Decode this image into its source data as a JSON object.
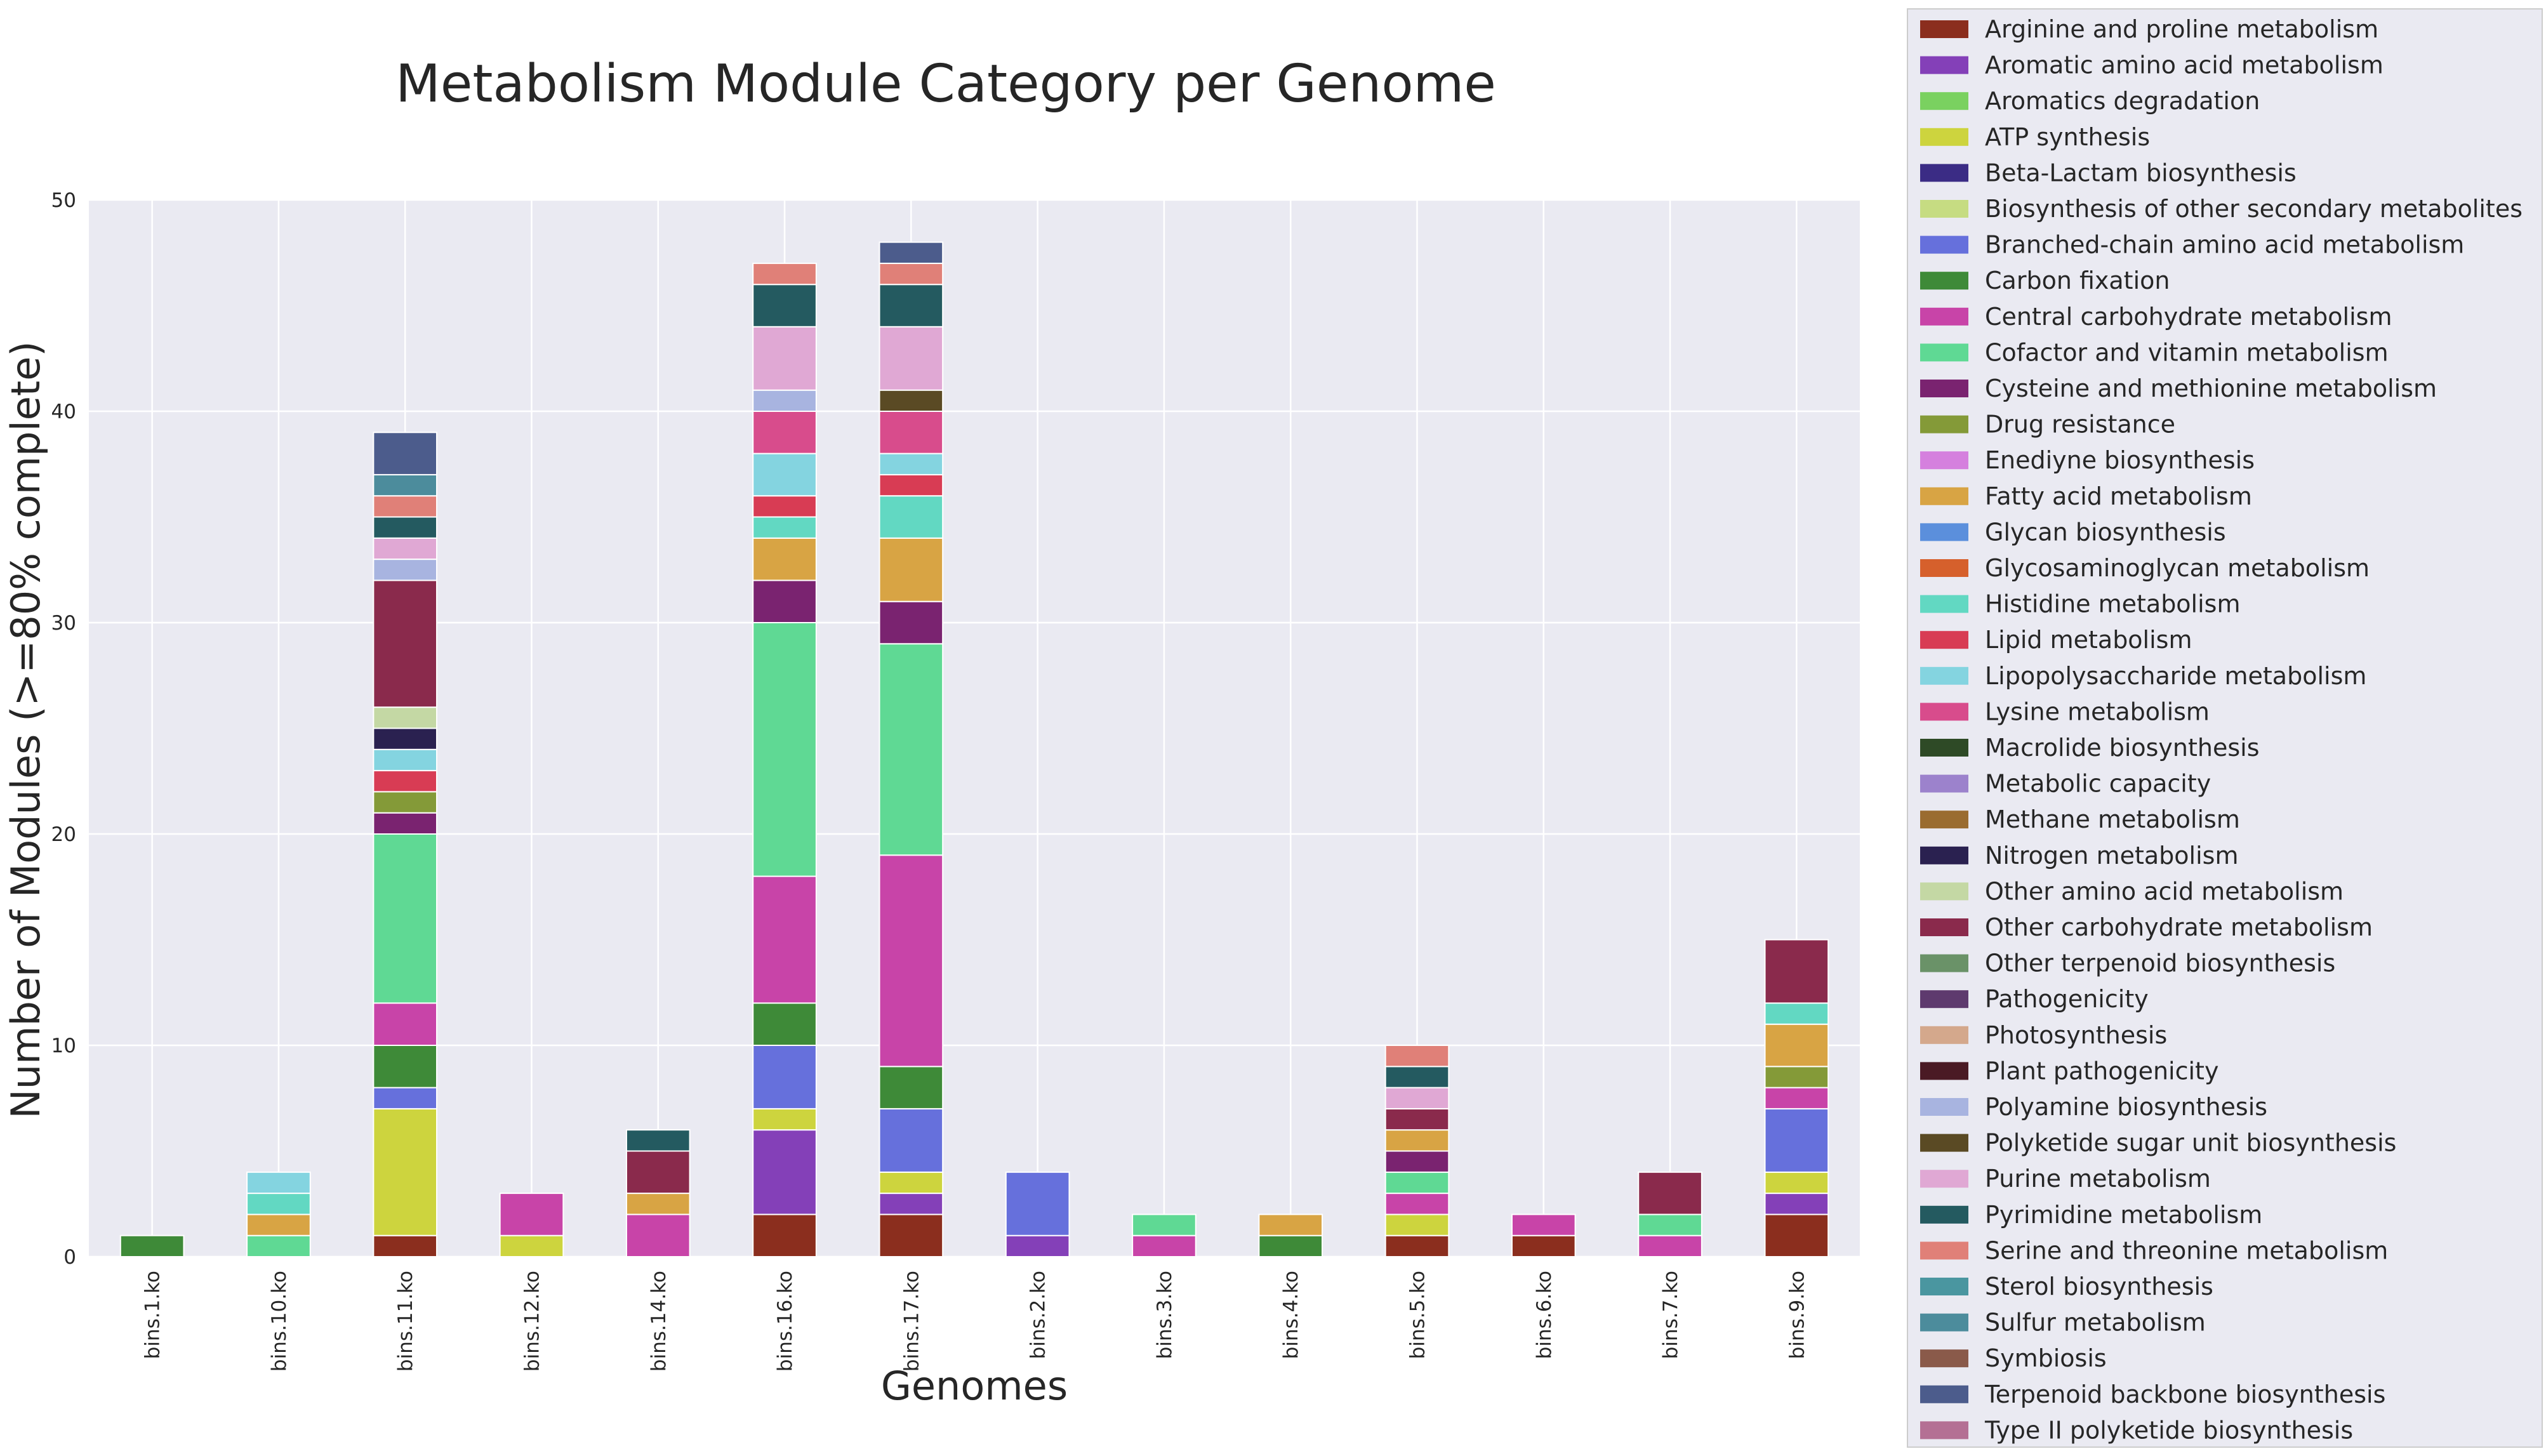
{
  "chart_data": {
    "type": "bar",
    "stacked": true,
    "title": "Metabolism Module Category per Genome",
    "xlabel": "Genomes",
    "ylabel": "Number of Modules (>=80% complete)",
    "ylim": [
      0,
      50
    ],
    "yticks": [
      0,
      10,
      20,
      30,
      40,
      50
    ],
    "grid": true,
    "legend_position": "right-outside",
    "categories": [
      "bins.1.ko",
      "bins.10.ko",
      "bins.11.ko",
      "bins.12.ko",
      "bins.14.ko",
      "bins.16.ko",
      "bins.17.ko",
      "bins.2.ko",
      "bins.3.ko",
      "bins.4.ko",
      "bins.5.ko",
      "bins.6.ko",
      "bins.7.ko",
      "bins.9.ko"
    ],
    "series": [
      {
        "name": "Arginine and proline metabolism",
        "color": "#8b2e1e",
        "values": [
          0,
          0,
          1,
          0,
          0,
          2,
          2,
          0,
          0,
          0,
          1,
          1,
          0,
          2
        ]
      },
      {
        "name": "Aromatic amino acid metabolism",
        "color": "#8440b8",
        "values": [
          0,
          0,
          0,
          0,
          0,
          4,
          1,
          1,
          0,
          0,
          0,
          0,
          0,
          1
        ]
      },
      {
        "name": "Aromatics degradation",
        "color": "#7ad160",
        "values": [
          0,
          0,
          0,
          0,
          0,
          0,
          0,
          0,
          0,
          0,
          0,
          0,
          0,
          0
        ]
      },
      {
        "name": "ATP synthesis",
        "color": "#cdd43e",
        "values": [
          0,
          0,
          6,
          1,
          0,
          1,
          1,
          0,
          0,
          0,
          1,
          0,
          0,
          1
        ]
      },
      {
        "name": "Beta-Lactam biosynthesis",
        "color": "#3b2c85",
        "values": [
          0,
          0,
          0,
          0,
          0,
          0,
          0,
          0,
          0,
          0,
          0,
          0,
          0,
          0
        ]
      },
      {
        "name": "Biosynthesis of other secondary metabolites",
        "color": "#c6dc82",
        "values": [
          0,
          0,
          0,
          0,
          0,
          0,
          0,
          0,
          0,
          0,
          0,
          0,
          0,
          0
        ]
      },
      {
        "name": "Branched-chain amino acid metabolism",
        "color": "#6670dc",
        "values": [
          0,
          0,
          1,
          0,
          0,
          3,
          3,
          3,
          0,
          0,
          0,
          0,
          0,
          3
        ]
      },
      {
        "name": "Carbon fixation",
        "color": "#3e8a38",
        "values": [
          1,
          0,
          2,
          0,
          0,
          2,
          2,
          0,
          0,
          1,
          0,
          0,
          0,
          0
        ]
      },
      {
        "name": "Central carbohydrate metabolism",
        "color": "#c844a8",
        "values": [
          0,
          0,
          2,
          2,
          2,
          6,
          10,
          0,
          1,
          0,
          1,
          1,
          1,
          1
        ]
      },
      {
        "name": "Cofactor and vitamin metabolism",
        "color": "#5fd994",
        "values": [
          0,
          1,
          8,
          0,
          0,
          12,
          10,
          0,
          1,
          0,
          1,
          0,
          1,
          0
        ]
      },
      {
        "name": "Cysteine and methionine metabolism",
        "color": "#7a2370",
        "values": [
          0,
          0,
          1,
          0,
          0,
          2,
          2,
          0,
          0,
          0,
          1,
          0,
          0,
          0
        ]
      },
      {
        "name": "Drug resistance",
        "color": "#849a38",
        "values": [
          0,
          0,
          1,
          0,
          0,
          0,
          0,
          0,
          0,
          0,
          0,
          0,
          0,
          1
        ]
      },
      {
        "name": "Enediyne biosynthesis",
        "color": "#d580de",
        "values": [
          0,
          0,
          0,
          0,
          0,
          0,
          0,
          0,
          0,
          0,
          0,
          0,
          0,
          0
        ]
      },
      {
        "name": "Fatty acid metabolism",
        "color": "#d8a444",
        "values": [
          0,
          1,
          0,
          0,
          1,
          2,
          3,
          0,
          0,
          1,
          1,
          0,
          0,
          2
        ]
      },
      {
        "name": "Glycan biosynthesis",
        "color": "#5b8fdc",
        "values": [
          0,
          0,
          0,
          0,
          0,
          0,
          0,
          0,
          0,
          0,
          0,
          0,
          0,
          0
        ]
      },
      {
        "name": "Glycosaminoglycan metabolism",
        "color": "#d6602c",
        "values": [
          0,
          0,
          0,
          0,
          0,
          0,
          0,
          0,
          0,
          0,
          0,
          0,
          0,
          0
        ]
      },
      {
        "name": "Histidine metabolism",
        "color": "#62d8c2",
        "values": [
          0,
          1,
          0,
          0,
          0,
          1,
          2,
          0,
          0,
          0,
          0,
          0,
          0,
          1
        ]
      },
      {
        "name": "Lipid metabolism",
        "color": "#d83c54",
        "values": [
          0,
          0,
          1,
          0,
          0,
          1,
          1,
          0,
          0,
          0,
          0,
          0,
          0,
          0
        ]
      },
      {
        "name": "Lipopolysaccharide metabolism",
        "color": "#84d4e0",
        "values": [
          0,
          1,
          1,
          0,
          0,
          2,
          1,
          0,
          0,
          0,
          0,
          0,
          0,
          0
        ]
      },
      {
        "name": "Lysine metabolism",
        "color": "#d84c8c",
        "values": [
          0,
          0,
          0,
          0,
          0,
          2,
          2,
          0,
          0,
          0,
          0,
          0,
          0,
          0
        ]
      },
      {
        "name": "Macrolide biosynthesis",
        "color": "#2e4a26",
        "values": [
          0,
          0,
          0,
          0,
          0,
          0,
          0,
          0,
          0,
          0,
          0,
          0,
          0,
          0
        ]
      },
      {
        "name": "Metabolic capacity",
        "color": "#9c82cc",
        "values": [
          0,
          0,
          0,
          0,
          0,
          0,
          0,
          0,
          0,
          0,
          0,
          0,
          0,
          0
        ]
      },
      {
        "name": "Methane metabolism",
        "color": "#9a6c30",
        "values": [
          0,
          0,
          0,
          0,
          0,
          0,
          0,
          0,
          0,
          0,
          0,
          0,
          0,
          0
        ]
      },
      {
        "name": "Nitrogen metabolism",
        "color": "#2a2150",
        "values": [
          0,
          0,
          1,
          0,
          0,
          0,
          0,
          0,
          0,
          0,
          0,
          0,
          0,
          0
        ]
      },
      {
        "name": "Other amino acid metabolism",
        "color": "#c4d8a4",
        "values": [
          0,
          0,
          1,
          0,
          0,
          0,
          0,
          0,
          0,
          0,
          0,
          0,
          0,
          0
        ]
      },
      {
        "name": "Other carbohydrate metabolism",
        "color": "#8a2a4c",
        "values": [
          0,
          0,
          6,
          0,
          2,
          0,
          0,
          0,
          0,
          0,
          1,
          0,
          2,
          3
        ]
      },
      {
        "name": "Other terpenoid biosynthesis",
        "color": "#6a9268",
        "values": [
          0,
          0,
          0,
          0,
          0,
          0,
          0,
          0,
          0,
          0,
          0,
          0,
          0,
          0
        ]
      },
      {
        "name": "Pathogenicity",
        "color": "#5e3a6e",
        "values": [
          0,
          0,
          0,
          0,
          0,
          0,
          0,
          0,
          0,
          0,
          0,
          0,
          0,
          0
        ]
      },
      {
        "name": "Photosynthesis",
        "color": "#d4a88c",
        "values": [
          0,
          0,
          0,
          0,
          0,
          0,
          0,
          0,
          0,
          0,
          0,
          0,
          0,
          0
        ]
      },
      {
        "name": "Plant pathogenicity",
        "color": "#4a1a24",
        "values": [
          0,
          0,
          0,
          0,
          0,
          0,
          0,
          0,
          0,
          0,
          0,
          0,
          0,
          0
        ]
      },
      {
        "name": "Polyamine biosynthesis",
        "color": "#a8b4e0",
        "values": [
          0,
          0,
          1,
          0,
          0,
          1,
          0,
          0,
          0,
          0,
          0,
          0,
          0,
          0
        ]
      },
      {
        "name": "Polyketide sugar unit biosynthesis",
        "color": "#5a4a24",
        "values": [
          0,
          0,
          0,
          0,
          0,
          0,
          1,
          0,
          0,
          0,
          0,
          0,
          0,
          0
        ]
      },
      {
        "name": "Purine metabolism",
        "color": "#e0a8d4",
        "values": [
          0,
          0,
          1,
          0,
          0,
          3,
          3,
          0,
          0,
          0,
          1,
          0,
          0,
          0
        ]
      },
      {
        "name": "Pyrimidine metabolism",
        "color": "#245a60",
        "values": [
          0,
          0,
          1,
          0,
          1,
          2,
          2,
          0,
          0,
          0,
          1,
          0,
          0,
          0
        ]
      },
      {
        "name": "Serine and threonine metabolism",
        "color": "#e08078",
        "values": [
          0,
          0,
          1,
          0,
          0,
          1,
          1,
          0,
          0,
          0,
          1,
          0,
          0,
          0
        ]
      },
      {
        "name": "Sterol biosynthesis",
        "color": "#4a96a0",
        "values": [
          0,
          0,
          0,
          0,
          0,
          0,
          0,
          0,
          0,
          0,
          0,
          0,
          0,
          0
        ]
      },
      {
        "name": "Sulfur metabolism",
        "color": "#4c8c9c",
        "values": [
          0,
          0,
          1,
          0,
          0,
          0,
          0,
          0,
          0,
          0,
          0,
          0,
          0,
          0
        ]
      },
      {
        "name": "Symbiosis",
        "color": "#8a5a4a",
        "values": [
          0,
          0,
          0,
          0,
          0,
          0,
          0,
          0,
          0,
          0,
          0,
          0,
          0,
          0
        ]
      },
      {
        "name": "Terpenoid backbone biosynthesis",
        "color": "#4c5c8c",
        "values": [
          0,
          0,
          2,
          0,
          0,
          0,
          1,
          0,
          0,
          0,
          0,
          0,
          0,
          0
        ]
      },
      {
        "name": "Type II polyketide biosynthesis",
        "color": "#b47094",
        "values": [
          0,
          0,
          0,
          0,
          0,
          0,
          0,
          0,
          0,
          0,
          0,
          0,
          0,
          0
        ]
      }
    ]
  }
}
